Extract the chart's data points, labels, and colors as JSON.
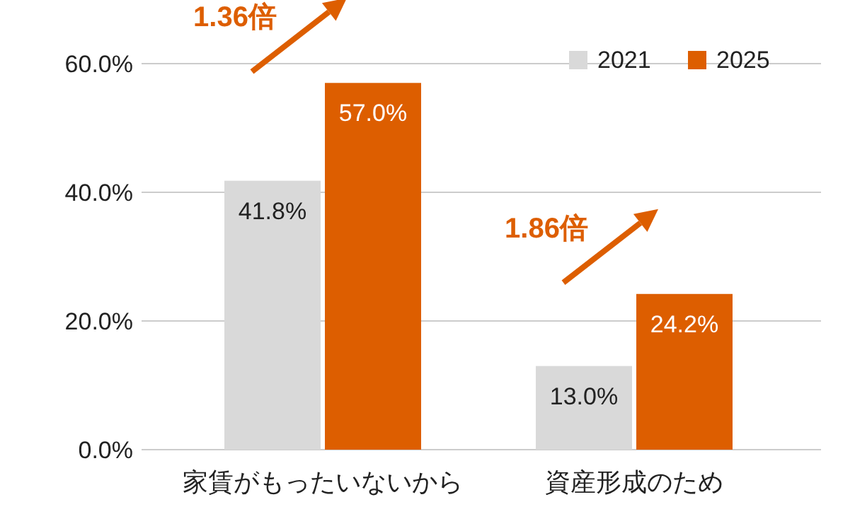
{
  "chart_data": {
    "type": "bar",
    "categories": [
      "家賃がもったいないから",
      "資産形成のため"
    ],
    "series": [
      {
        "name": "2021",
        "color": "#d9d9d9",
        "values": [
          41.8,
          13.0
        ],
        "value_labels": [
          "41.8%",
          "13.0%"
        ]
      },
      {
        "name": "2025",
        "color": "#dd5e00",
        "values": [
          57.0,
          24.2
        ],
        "value_labels": [
          "57.0%",
          "24.2%"
        ]
      }
    ],
    "ylim": [
      0,
      60
    ],
    "yticks": [
      {
        "value": 0,
        "label": "0.0%"
      },
      {
        "value": 20,
        "label": "20.0%"
      },
      {
        "value": 40,
        "label": "40.0%"
      },
      {
        "value": 60,
        "label": "60.0%"
      }
    ],
    "grid": "y",
    "legend": "top right",
    "annotations": [
      "1.36倍",
      "1.86倍"
    ]
  }
}
